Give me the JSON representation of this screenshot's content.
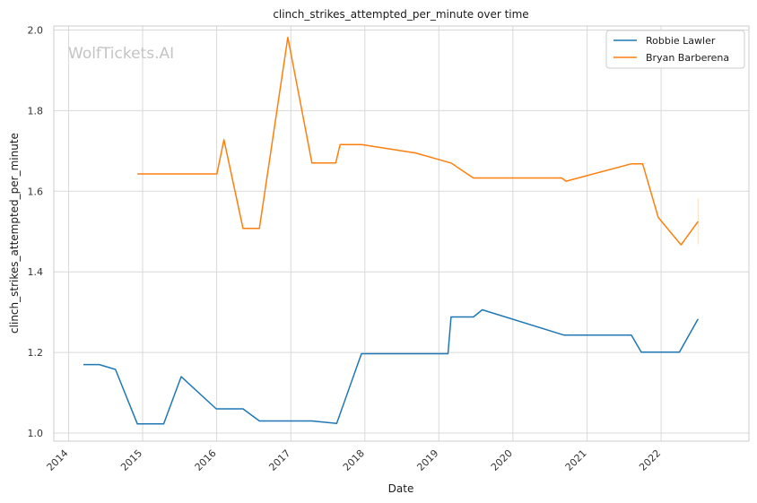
{
  "chart_data": {
    "type": "line",
    "title": "clinch_strikes_attempted_per_minute over time",
    "xlabel": "Date",
    "ylabel": "clinch_strikes_attempted_per_minute",
    "x_ticks": [
      "2014",
      "2015",
      "2016",
      "2017",
      "2018",
      "2019",
      "2020",
      "2021",
      "2022"
    ],
    "y_ticks": [
      "1.0",
      "1.2",
      "1.4",
      "1.6",
      "1.8",
      "2.0"
    ],
    "xlim": [
      "2013-10-20",
      "2023-03-10"
    ],
    "ylim": [
      0.98,
      2.01
    ],
    "grid": true,
    "legend_position": "top-right",
    "watermark": "WolfTickets.AI",
    "series": [
      {
        "name": "Robbie Lawler",
        "color": "#1f77b4",
        "points": [
          [
            "2014-03-15",
            1.17
          ],
          [
            "2014-06-01",
            1.17
          ],
          [
            "2014-08-20",
            1.158
          ],
          [
            "2014-12-06",
            1.023
          ],
          [
            "2015-04-15",
            1.023
          ],
          [
            "2015-07-10",
            1.14
          ],
          [
            "2015-12-30",
            1.06
          ],
          [
            "2016-05-10",
            1.06
          ],
          [
            "2016-07-30",
            1.03
          ],
          [
            "2017-04-15",
            1.03
          ],
          [
            "2017-08-15",
            1.024
          ],
          [
            "2017-12-15",
            1.197
          ],
          [
            "2019-02-15",
            1.197
          ],
          [
            "2019-03-02",
            1.288
          ],
          [
            "2019-06-20",
            1.288
          ],
          [
            "2019-08-03",
            1.306
          ],
          [
            "2020-09-10",
            1.243
          ],
          [
            "2021-08-07",
            1.243
          ],
          [
            "2021-09-25",
            1.201
          ],
          [
            "2022-04-01",
            1.201
          ],
          [
            "2022-07-02",
            1.283
          ]
        ]
      },
      {
        "name": "Bryan Barberena",
        "color": "#ff7f0e",
        "points": [
          [
            "2014-12-06",
            1.643
          ],
          [
            "2016-01-02",
            1.643
          ],
          [
            "2016-02-06",
            1.728
          ],
          [
            "2016-05-10",
            1.508
          ],
          [
            "2016-07-30",
            1.508
          ],
          [
            "2016-12-17",
            1.982
          ],
          [
            "2017-04-15",
            1.67
          ],
          [
            "2017-08-10",
            1.67
          ],
          [
            "2017-09-01",
            1.716
          ],
          [
            "2017-12-15",
            1.716
          ],
          [
            "2018-09-08",
            1.695
          ],
          [
            "2019-03-02",
            1.67
          ],
          [
            "2019-06-20",
            1.633
          ],
          [
            "2020-08-29",
            1.633
          ],
          [
            "2020-09-19",
            1.625
          ],
          [
            "2021-08-07",
            1.668
          ],
          [
            "2021-10-02",
            1.668
          ],
          [
            "2021-12-18",
            1.535
          ],
          [
            "2022-04-09",
            1.467
          ],
          [
            "2022-07-02",
            1.525
          ]
        ],
        "error_band": {
          "x": "2022-07-02",
          "low": 1.468,
          "high": 1.583
        }
      }
    ]
  }
}
